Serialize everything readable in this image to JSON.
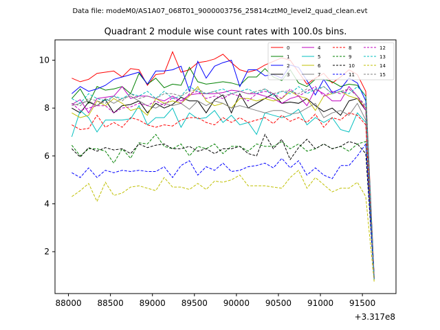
{
  "header": {
    "data_file": "Data file: modeM0/AS1A07_068T01_9000003756_25814cztM0_level2_quad_clean.evt"
  },
  "chart_data": {
    "type": "line",
    "title": "Quadrant 2 module wise count rates with 100.0s bins.",
    "xlabel": "",
    "ylabel": "",
    "x_offset_label": "+3.317e8",
    "xlim": [
      87840,
      91900
    ],
    "ylim": [
      0.25,
      10.85
    ],
    "xticks": [
      88000,
      88500,
      89000,
      89500,
      90000,
      90500,
      91000,
      91500
    ],
    "xtick_labels": [
      "88000",
      "88500",
      "89000",
      "89500",
      "90000",
      "90500",
      "91000",
      "91500"
    ],
    "yticks": [
      2,
      4,
      6,
      8,
      10
    ],
    "ytick_labels": [
      "2",
      "4",
      "6",
      "8",
      "10"
    ],
    "grid": false,
    "legend": {
      "placement": "top-right",
      "columns": 4
    },
    "x": [
      88040,
      88140,
      88240,
      88340,
      88440,
      88540,
      88640,
      88740,
      88840,
      88940,
      89040,
      89140,
      89240,
      89340,
      89440,
      89540,
      89640,
      89740,
      89840,
      89940,
      90040,
      90140,
      90240,
      90340,
      90440,
      90540,
      90640,
      90740,
      90840,
      90940,
      91040,
      91140,
      91240,
      91340,
      91440,
      91540,
      91640
    ],
    "series": [
      {
        "name": "0",
        "color": "#ff0000",
        "dash": false,
        "values": [
          9.25,
          9.1,
          9.2,
          9.45,
          9.5,
          9.55,
          9.3,
          9.65,
          9.6,
          8.95,
          9.4,
          9.45,
          10.35,
          9.5,
          9.6,
          9.9,
          9.95,
          10.05,
          10.25,
          9.9,
          9.6,
          9.5,
          9.6,
          9.8,
          9.95,
          10.1,
          10.0,
          9.5,
          9.0,
          9.25,
          9.45,
          9.05,
          9.3,
          9.6,
          9.4,
          8.7,
          1.0
        ]
      },
      {
        "name": "1",
        "color": "#008000",
        "dash": false,
        "values": [
          8.4,
          8.8,
          8.2,
          8.9,
          8.75,
          8.8,
          8.9,
          8.6,
          9.45,
          9.0,
          9.25,
          8.85,
          9.0,
          8.95,
          9.7,
          9.1,
          9.0,
          9.05,
          9.1,
          9.05,
          8.95,
          9.3,
          9.3,
          9.65,
          9.3,
          9.15,
          9.6,
          9.05,
          8.9,
          9.2,
          9.2,
          9.1,
          8.9,
          9.0,
          8.95,
          8.5,
          0.9
        ]
      },
      {
        "name": "2",
        "color": "#0000ff",
        "dash": false,
        "values": [
          8.6,
          8.9,
          8.7,
          8.8,
          8.95,
          9.2,
          9.3,
          9.4,
          9.5,
          9.0,
          9.55,
          9.55,
          9.6,
          9.75,
          8.7,
          9.95,
          9.25,
          9.75,
          9.9,
          10.0,
          8.9,
          9.6,
          9.6,
          9.35,
          9.4,
          9.25,
          9.8,
          9.7,
          9.15,
          8.55,
          9.2,
          8.65,
          8.8,
          9.25,
          9.05,
          8.3,
          0.95
        ]
      },
      {
        "name": "3",
        "color": "#000000",
        "dash": false,
        "values": [
          8.0,
          7.8,
          8.25,
          8.1,
          8.35,
          7.8,
          8.1,
          8.15,
          8.3,
          7.8,
          8.2,
          8.0,
          8.15,
          8.45,
          8.3,
          8.3,
          7.8,
          8.35,
          8.55,
          7.8,
          8.6,
          8.0,
          8.2,
          8.4,
          8.6,
          8.2,
          8.25,
          8.2,
          8.4,
          8.1,
          7.85,
          8.0,
          7.7,
          8.3,
          8.4,
          7.9,
          0.9
        ]
      },
      {
        "name": "4",
        "color": "#bf00bf",
        "dash": false,
        "values": [
          8.15,
          8.35,
          7.8,
          8.4,
          8.45,
          8.5,
          8.9,
          8.4,
          8.5,
          8.5,
          8.4,
          8.3,
          8.5,
          8.3,
          8.55,
          8.6,
          8.6,
          8.6,
          8.65,
          8.75,
          8.7,
          8.6,
          8.6,
          8.5,
          8.4,
          8.2,
          8.4,
          8.5,
          8.1,
          8.8,
          8.6,
          8.3,
          8.3,
          8.9,
          8.5,
          7.9,
          0.85
        ]
      },
      {
        "name": "5",
        "color": "#00bfbf",
        "dash": false,
        "values": [
          6.8,
          7.9,
          7.6,
          7.0,
          7.5,
          7.5,
          7.5,
          7.55,
          8.1,
          7.3,
          7.6,
          7.6,
          8.0,
          7.2,
          7.8,
          7.55,
          7.6,
          7.9,
          7.4,
          7.7,
          7.3,
          7.4,
          6.9,
          7.8,
          7.7,
          7.6,
          7.7,
          7.95,
          7.3,
          7.6,
          7.4,
          7.6,
          7.1,
          7.0,
          7.8,
          7.4,
          0.85
        ]
      },
      {
        "name": "6",
        "color": "#bfbf00",
        "dash": false,
        "values": [
          7.8,
          7.6,
          7.7,
          8.3,
          8.1,
          8.4,
          8.2,
          7.9,
          8.0,
          7.7,
          8.4,
          8.2,
          8.3,
          8.2,
          8.5,
          8.9,
          8.3,
          8.1,
          8.2,
          8.0,
          8.4,
          8.4,
          8.3,
          8.4,
          8.3,
          8.4,
          8.7,
          8.5,
          8.4,
          7.9,
          8.5,
          8.6,
          8.7,
          8.5,
          8.4,
          8.0,
          0.8
        ]
      },
      {
        "name": "7",
        "color": "#808080",
        "dash": false,
        "values": [
          8.1,
          8.2,
          8.3,
          8.1,
          8.4,
          8.2,
          8.4,
          8.5,
          8.3,
          8.1,
          8.0,
          8.2,
          8.1,
          8.2,
          7.95,
          8.3,
          8.1,
          8.3,
          8.2,
          8.0,
          8.1,
          8.0,
          7.9,
          7.8,
          7.9,
          7.9,
          7.75,
          7.8,
          8.0,
          8.2,
          7.6,
          7.8,
          7.9,
          7.7,
          8.2,
          7.5,
          0.9
        ]
      },
      {
        "name": "8",
        "color": "#ff0000",
        "dash": true,
        "values": [
          7.3,
          7.1,
          7.15,
          7.7,
          7.2,
          7.4,
          7.2,
          7.6,
          7.5,
          7.3,
          7.2,
          7.3,
          7.25,
          7.5,
          7.6,
          7.6,
          7.4,
          7.3,
          7.6,
          7.4,
          7.6,
          7.4,
          7.5,
          7.6,
          7.35,
          7.7,
          7.45,
          7.6,
          7.4,
          7.75,
          7.2,
          7.6,
          7.5,
          7.8,
          7.7,
          7.3,
          0.85
        ]
      },
      {
        "name": "9",
        "color": "#008000",
        "dash": true,
        "values": [
          6.45,
          6.0,
          6.3,
          6.3,
          6.2,
          5.7,
          6.3,
          5.9,
          6.55,
          6.5,
          6.9,
          6.4,
          6.3,
          6.5,
          6.0,
          6.4,
          6.3,
          6.5,
          6.1,
          6.4,
          6.4,
          6.2,
          6.5,
          6.4,
          6.4,
          6.6,
          6.3,
          6.5,
          6.2,
          6.3,
          6.5,
          6.3,
          6.4,
          6.2,
          6.5,
          6.6,
          0.9
        ]
      },
      {
        "name": "10",
        "color": "#000000",
        "dash": true,
        "values": [
          6.3,
          5.95,
          6.35,
          6.2,
          6.35,
          6.25,
          6.3,
          6.1,
          6.5,
          6.35,
          6.45,
          6.5,
          6.3,
          6.3,
          6.4,
          6.2,
          6.3,
          6.1,
          6.3,
          6.3,
          6.4,
          6.1,
          6.0,
          6.9,
          6.3,
          6.7,
          5.85,
          6.35,
          6.7,
          6.3,
          6.5,
          6.3,
          6.4,
          6.6,
          6.5,
          6.1,
          0.85
        ]
      },
      {
        "name": "11",
        "color": "#0000ff",
        "dash": true,
        "values": [
          5.3,
          5.1,
          5.5,
          5.1,
          5.4,
          5.3,
          5.4,
          5.35,
          5.4,
          5.35,
          5.35,
          5.55,
          5.1,
          5.6,
          5.8,
          5.2,
          5.55,
          5.4,
          5.7,
          5.35,
          5.4,
          5.55,
          5.6,
          5.7,
          5.5,
          5.9,
          5.5,
          5.8,
          5.2,
          5.5,
          5.2,
          5.05,
          5.6,
          5.6,
          6.0,
          6.5,
          0.85
        ]
      },
      {
        "name": "12",
        "color": "#bf00bf",
        "dash": true,
        "values": [
          8.2,
          7.9,
          8.0,
          8.1,
          8.1,
          7.8,
          8.0,
          8.05,
          8.2,
          8.1,
          8.3,
          8.1,
          8.45,
          8.2,
          8.6,
          8.7,
          8.4,
          8.5,
          8.4,
          8.6,
          8.5,
          8.3,
          8.6,
          8.7,
          8.6,
          8.4,
          8.8,
          8.5,
          8.7,
          8.9,
          8.5,
          8.7,
          8.6,
          8.8,
          8.5,
          8.0,
          0.9
        ]
      },
      {
        "name": "13",
        "color": "#00bfbf",
        "dash": true,
        "values": [
          8.4,
          8.2,
          8.6,
          8.4,
          8.3,
          8.5,
          8.4,
          8.6,
          8.5,
          8.7,
          8.4,
          8.7,
          8.4,
          8.5,
          8.9,
          8.7,
          8.6,
          8.7,
          8.8,
          8.6,
          8.7,
          8.8,
          8.6,
          8.8,
          8.5,
          8.7,
          8.6,
          8.9,
          8.6,
          8.8,
          8.9,
          8.6,
          8.7,
          8.6,
          8.9,
          8.5,
          0.85
        ]
      },
      {
        "name": "14",
        "color": "#bfbf00",
        "dash": true,
        "values": [
          4.3,
          4.55,
          4.85,
          4.1,
          4.9,
          4.35,
          4.45,
          4.7,
          4.75,
          4.65,
          4.55,
          5.1,
          4.7,
          4.7,
          4.6,
          4.85,
          4.6,
          4.95,
          4.9,
          5.0,
          5.2,
          4.75,
          4.75,
          4.75,
          4.7,
          4.65,
          5.1,
          5.4,
          4.65,
          5.1,
          4.8,
          4.5,
          4.65,
          4.65,
          4.9,
          4.3,
          0.75
        ]
      },
      {
        "name": "15",
        "color": "#808080",
        "dash": true,
        "values": [
          8.2,
          8.1,
          8.4,
          8.3,
          8.2,
          8.5,
          8.3,
          8.6,
          8.4,
          8.5,
          8.4,
          8.6,
          8.6,
          8.5,
          8.7,
          8.8,
          8.6,
          8.7,
          8.5,
          8.6,
          8.7,
          8.6,
          8.7,
          8.8,
          8.6,
          8.7,
          8.7,
          8.6,
          8.8,
          8.7,
          8.9,
          8.6,
          8.7,
          8.8,
          8.5,
          8.1,
          0.85
        ]
      }
    ]
  }
}
